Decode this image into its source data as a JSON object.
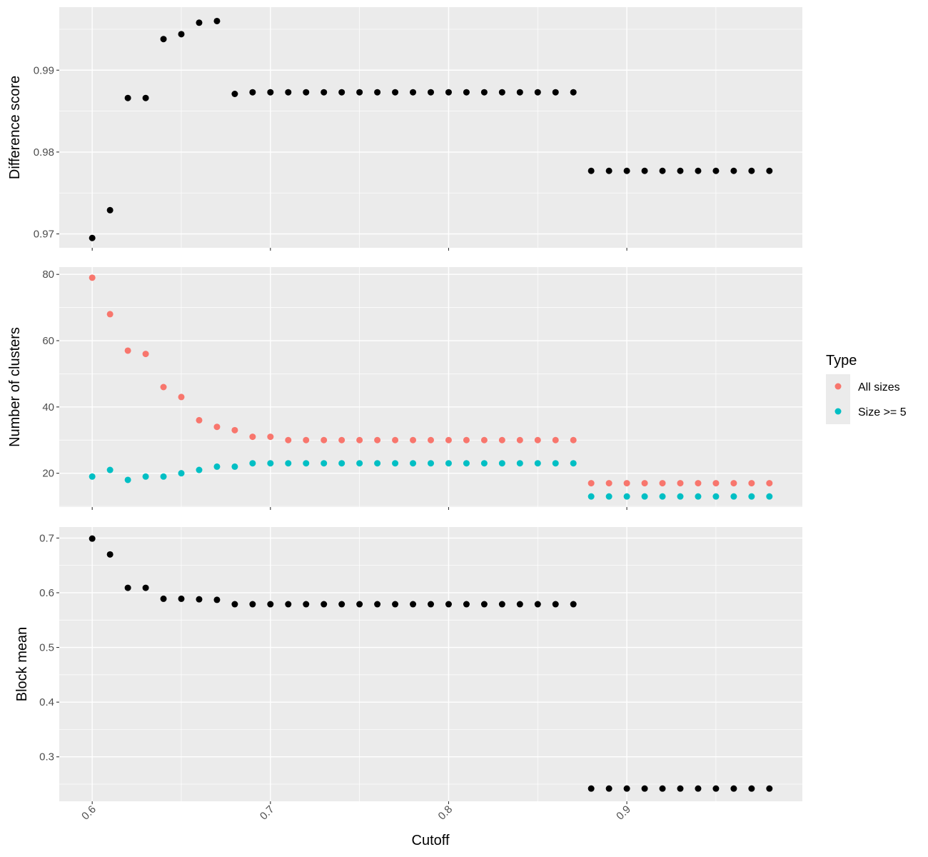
{
  "chart_data": {
    "type": "scatter",
    "xlabel": "Cutoff",
    "x_ticks": [
      "0.6",
      "0.7",
      "0.8",
      "0.9"
    ],
    "x_tick_values": [
      0.6,
      0.7,
      0.8,
      0.9
    ],
    "x": [
      0.6,
      0.61,
      0.62,
      0.63,
      0.64,
      0.65,
      0.66,
      0.67,
      0.68,
      0.69,
      0.7,
      0.71,
      0.72,
      0.73,
      0.74,
      0.75,
      0.76,
      0.77,
      0.78,
      0.79,
      0.8,
      0.81,
      0.82,
      0.83,
      0.84,
      0.85,
      0.86,
      0.87,
      0.88,
      0.89,
      0.9,
      0.91,
      0.92,
      0.93,
      0.94,
      0.95,
      0.96,
      0.97,
      0.98
    ],
    "xlim": [
      0.5815,
      0.9985
    ],
    "grid": true,
    "legend": {
      "title": "Type",
      "position": "right",
      "entries": [
        {
          "label": "All sizes",
          "color": "#F8766D"
        },
        {
          "label": "Size >= 5",
          "color": "#00BFC4"
        }
      ]
    },
    "panels": [
      {
        "ylabel": "Difference score",
        "ylim": [
          0.9683,
          0.9977
        ],
        "y_ticks": [
          "0.97",
          "0.98",
          "0.99"
        ],
        "y_tick_values": [
          0.97,
          0.98,
          0.99
        ],
        "series": [
          {
            "color": "#000000",
            "values": [
              0.9695,
              0.9729,
              0.9866,
              0.9866,
              0.9938,
              0.9944,
              0.9958,
              0.996,
              0.9871,
              0.9873,
              0.9873,
              0.9873,
              0.9873,
              0.9873,
              0.9873,
              0.9873,
              0.9873,
              0.9873,
              0.9873,
              0.9873,
              0.9873,
              0.9873,
              0.9873,
              0.9873,
              0.9873,
              0.9873,
              0.9873,
              0.9873,
              0.9777,
              0.9777,
              0.9777,
              0.9777,
              0.9777,
              0.9777,
              0.9777,
              0.9777,
              0.9777,
              0.9777,
              0.9777
            ]
          }
        ]
      },
      {
        "ylabel": "Number of clusters",
        "ylim": [
          9.8,
          82.2
        ],
        "y_ticks": [
          "20",
          "40",
          "60",
          "80"
        ],
        "y_tick_values": [
          20,
          40,
          60,
          80
        ],
        "series": [
          {
            "name": "All sizes",
            "color": "#F8766D",
            "values": [
              79,
              68,
              57,
              56,
              46,
              43,
              36,
              34,
              33,
              31,
              31,
              30,
              30,
              30,
              30,
              30,
              30,
              30,
              30,
              30,
              30,
              30,
              30,
              30,
              30,
              30,
              30,
              30,
              17,
              17,
              17,
              17,
              17,
              17,
              17,
              17,
              17,
              17,
              17
            ]
          },
          {
            "name": "Size >= 5",
            "color": "#00BFC4",
            "values": [
              19,
              21,
              18,
              19,
              19,
              20,
              21,
              22,
              22,
              23,
              23,
              23,
              23,
              23,
              23,
              23,
              23,
              23,
              23,
              23,
              23,
              23,
              23,
              23,
              23,
              23,
              23,
              23,
              13,
              13,
              13,
              13,
              13,
              13,
              13,
              13,
              13,
              13,
              13
            ]
          }
        ]
      },
      {
        "ylabel": "Block mean",
        "ylim": [
          0.2187,
          0.7201
        ],
        "y_ticks": [
          "0.3",
          "0.4",
          "0.5",
          "0.6",
          "0.7"
        ],
        "y_tick_values": [
          0.3,
          0.4,
          0.5,
          0.6,
          0.7
        ],
        "series": [
          {
            "color": "#000000",
            "values": [
              0.699,
              0.67,
              0.609,
              0.609,
              0.589,
              0.589,
              0.588,
              0.587,
              0.579,
              0.579,
              0.579,
              0.579,
              0.579,
              0.579,
              0.579,
              0.579,
              0.579,
              0.579,
              0.579,
              0.579,
              0.579,
              0.579,
              0.579,
              0.579,
              0.579,
              0.579,
              0.579,
              0.579,
              0.242,
              0.242,
              0.242,
              0.242,
              0.242,
              0.242,
              0.242,
              0.242,
              0.242,
              0.242,
              0.242
            ]
          }
        ]
      }
    ]
  }
}
